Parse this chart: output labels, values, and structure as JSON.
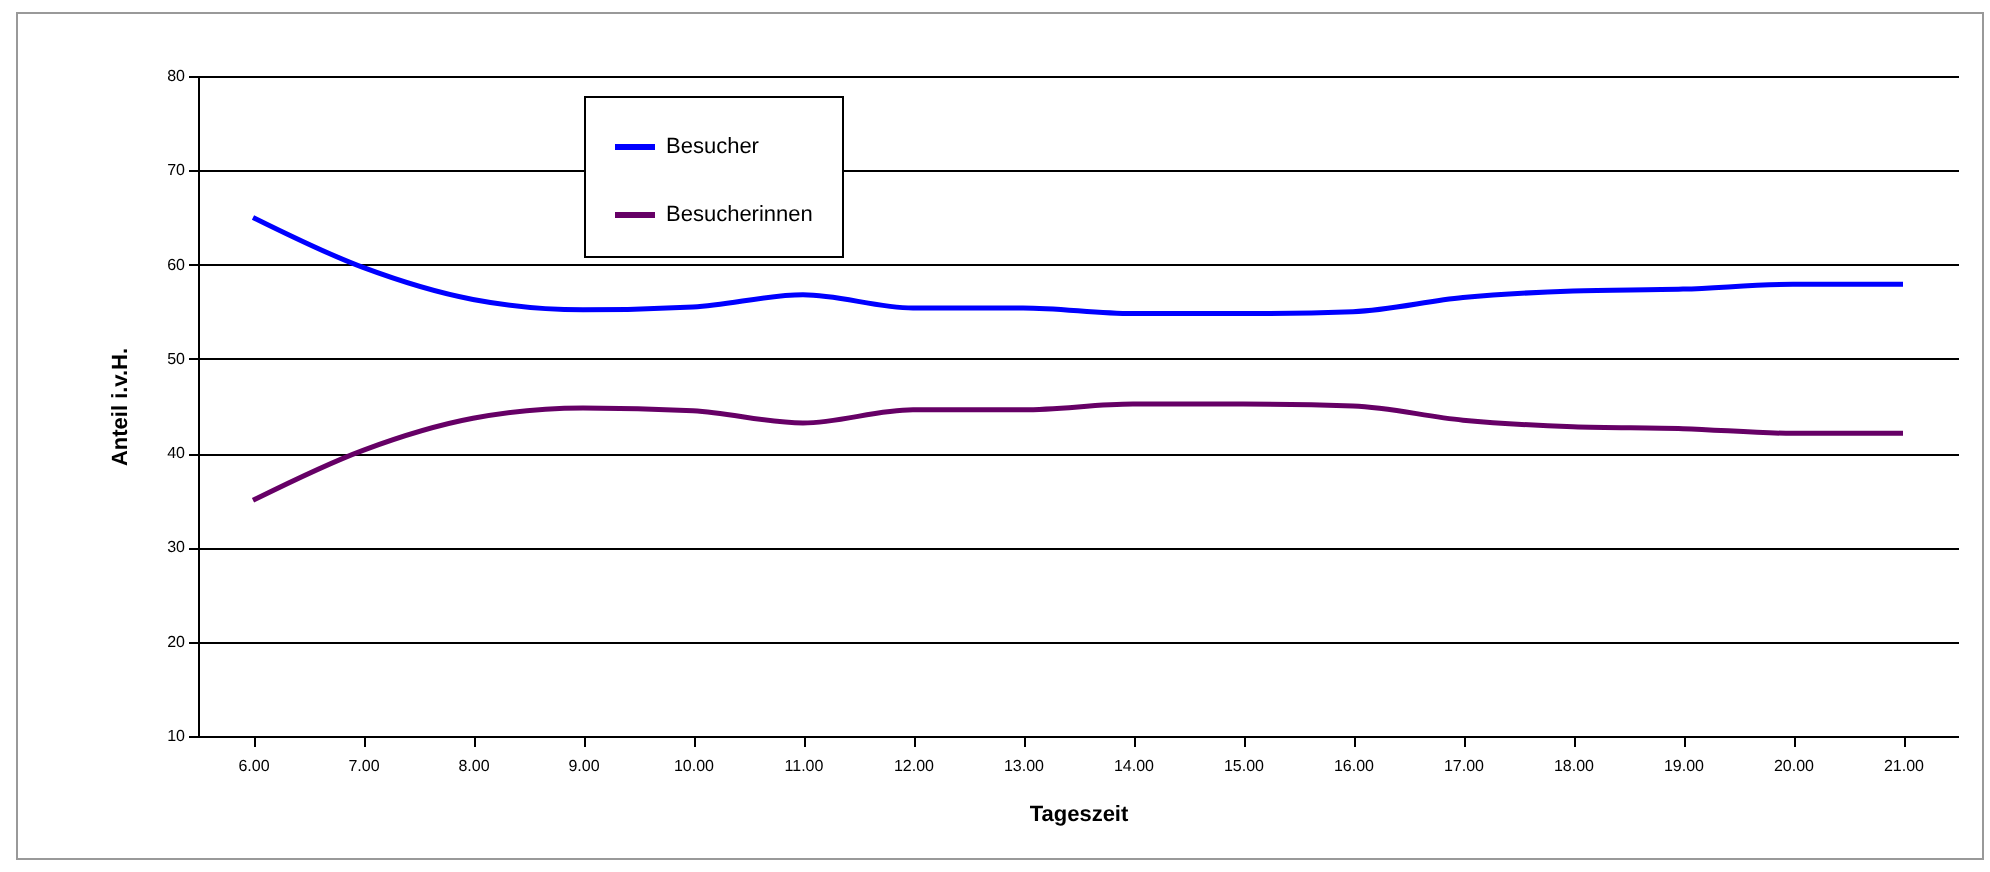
{
  "chart_data": {
    "type": "line",
    "xlabel": "Tageszeit",
    "ylabel": "Anteil i.v.H.",
    "categories": [
      "6.00",
      "7.00",
      "8.00",
      "9.00",
      "10.00",
      "11.00",
      "12.00",
      "13.00",
      "14.00",
      "15.00",
      "16.00",
      "17.00",
      "18.00",
      "19.00",
      "20.00",
      "21.00"
    ],
    "series": [
      {
        "name": "Besucher",
        "color": "#0000ff",
        "values": [
          65,
          59.7,
          56.3,
          55.2,
          55.5,
          56.8,
          55.4,
          55.4,
          54.8,
          54.8,
          55,
          56.5,
          57.2,
          57.4,
          57.9,
          57.9
        ]
      },
      {
        "name": "Besucherinnen",
        "color": "#660066",
        "values": [
          35,
          40.3,
          43.7,
          44.8,
          44.5,
          43.2,
          44.6,
          44.6,
          45.2,
          45.2,
          45,
          43.5,
          42.8,
          42.6,
          42.1,
          42.1
        ]
      }
    ],
    "ylim": [
      10,
      80
    ],
    "yticks": [
      10,
      20,
      30,
      40,
      50,
      60,
      70,
      80
    ],
    "grid": "y",
    "legend": "top left",
    "marker": "none",
    "line_style": "solid"
  }
}
